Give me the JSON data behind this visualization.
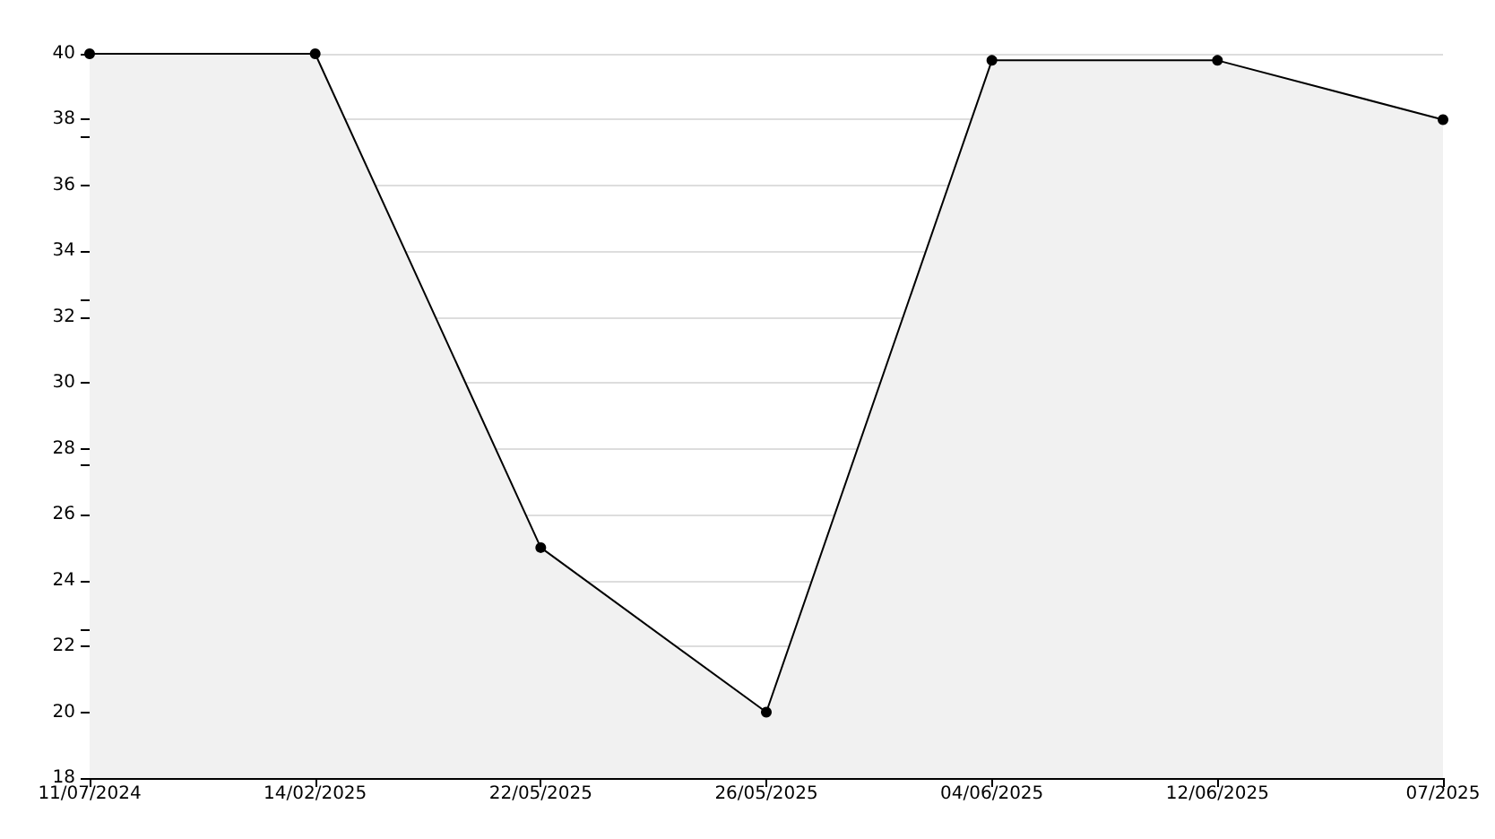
{
  "chart_data": {
    "type": "area",
    "categories": [
      "11/07/2024",
      "14/02/2025",
      "22/05/2025",
      "26/05/2025",
      "04/06/2025",
      "12/06/2025",
      "07/2025"
    ],
    "series": [
      {
        "color": "#000000",
        "values": [
          40,
          40,
          25,
          20,
          39.8,
          39.8,
          38
        ]
      }
    ],
    "ylim": [
      18,
      40
    ],
    "yticks": [
      18,
      20,
      22,
      24,
      26,
      28,
      30,
      32,
      34,
      36,
      38,
      40
    ],
    "grid": "y",
    "marker": "circle",
    "line_style": "solid"
  }
}
